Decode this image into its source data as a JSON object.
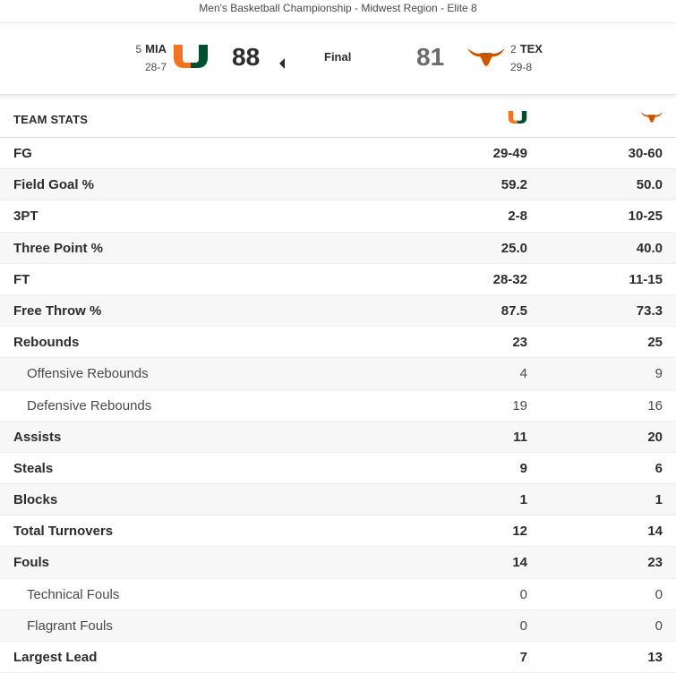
{
  "header": {
    "subtitle": "Men's Basketball Championship - Midwest Region - Elite 8"
  },
  "game": {
    "status": "Final",
    "away": {
      "rank": "5",
      "abbr": "MIA",
      "record": "28-7",
      "score": "88",
      "color": "#f47321",
      "secondary": "#005030"
    },
    "home": {
      "rank": "2",
      "abbr": "TEX",
      "record": "29-8",
      "score": "81",
      "color": "#cc5500"
    }
  },
  "stats": {
    "header_label": "TEAM STATS",
    "rows": [
      {
        "label": "FG",
        "away": "29-49",
        "home": "30-60",
        "sub": false
      },
      {
        "label": "Field Goal %",
        "away": "59.2",
        "home": "50.0",
        "sub": false
      },
      {
        "label": "3PT",
        "away": "2-8",
        "home": "10-25",
        "sub": false
      },
      {
        "label": "Three Point %",
        "away": "25.0",
        "home": "40.0",
        "sub": false
      },
      {
        "label": "FT",
        "away": "28-32",
        "home": "11-15",
        "sub": false
      },
      {
        "label": "Free Throw %",
        "away": "87.5",
        "home": "73.3",
        "sub": false
      },
      {
        "label": "Rebounds",
        "away": "23",
        "home": "25",
        "sub": false
      },
      {
        "label": "Offensive Rebounds",
        "away": "4",
        "home": "9",
        "sub": true
      },
      {
        "label": "Defensive Rebounds",
        "away": "19",
        "home": "16",
        "sub": true
      },
      {
        "label": "Assists",
        "away": "11",
        "home": "20",
        "sub": false
      },
      {
        "label": "Steals",
        "away": "9",
        "home": "6",
        "sub": false
      },
      {
        "label": "Blocks",
        "away": "1",
        "home": "1",
        "sub": false
      },
      {
        "label": "Total Turnovers",
        "away": "12",
        "home": "14",
        "sub": false
      },
      {
        "label": "Fouls",
        "away": "14",
        "home": "23",
        "sub": false
      },
      {
        "label": "Technical Fouls",
        "away": "0",
        "home": "0",
        "sub": true
      },
      {
        "label": "Flagrant Fouls",
        "away": "0",
        "home": "0",
        "sub": true
      },
      {
        "label": "Largest Lead",
        "away": "7",
        "home": "13",
        "sub": false
      }
    ]
  }
}
